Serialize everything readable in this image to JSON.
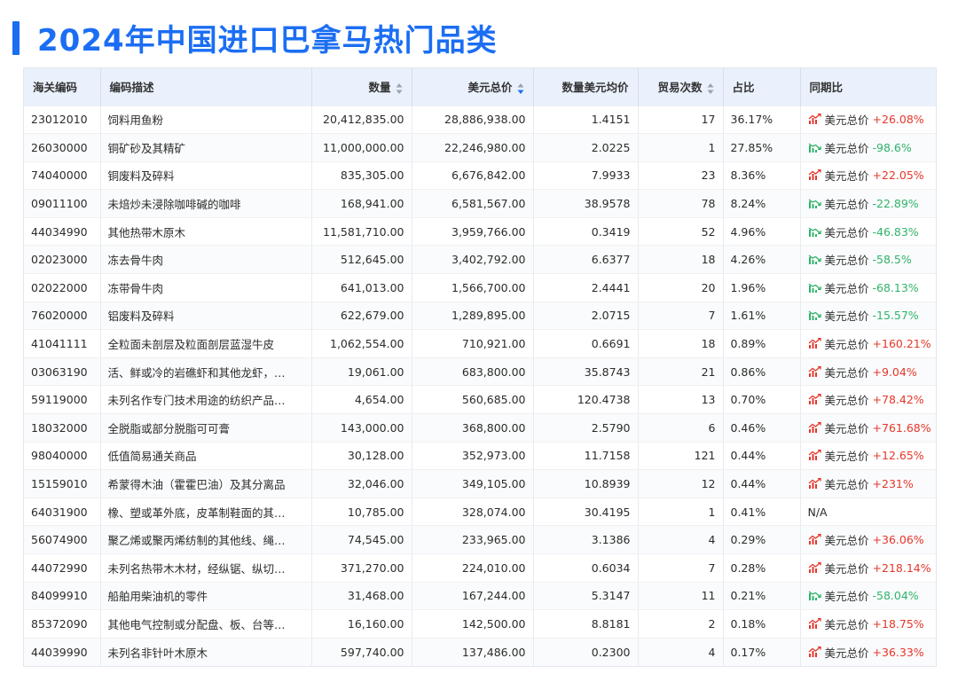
{
  "page_title": "2024年中国进口巴拿马热门品类",
  "colors": {
    "accent": "#1b6ef3",
    "positive": "#e5372b",
    "negative": "#2fb36b",
    "header_bg": "#eaf1fc"
  },
  "table": {
    "headers": {
      "code": "海关编码",
      "desc": "编码描述",
      "qty": "数量",
      "usd": "美元总价",
      "avg": "数量美元均价",
      "trades": "贸易次数",
      "share": "占比",
      "yoy": "同期比"
    },
    "rows": [
      {
        "code": "23012010",
        "desc": "饲料用鱼粉",
        "qty": "20,412,835.00",
        "usd": "28,886,938.00",
        "avg": "1.4151",
        "trades": "17",
        "share": "36.17%",
        "yoy_prefix": "美元总价",
        "yoy": "+26.08%",
        "dir": "up"
      },
      {
        "code": "26030000",
        "desc": "铜矿砂及其精矿",
        "qty": "11,000,000.00",
        "usd": "22,246,980.00",
        "avg": "2.0225",
        "trades": "1",
        "share": "27.85%",
        "yoy_prefix": "美元总价",
        "yoy": "-98.6%",
        "dir": "down"
      },
      {
        "code": "74040000",
        "desc": "铜废料及碎料",
        "qty": "835,305.00",
        "usd": "6,676,842.00",
        "avg": "7.9933",
        "trades": "23",
        "share": "8.36%",
        "yoy_prefix": "美元总价",
        "yoy": "+22.05%",
        "dir": "up"
      },
      {
        "code": "09011100",
        "desc": "未焙炒未浸除咖啡碱的咖啡",
        "qty": "168,941.00",
        "usd": "6,581,567.00",
        "avg": "38.9578",
        "trades": "78",
        "share": "8.24%",
        "yoy_prefix": "美元总价",
        "yoy": "-22.89%",
        "dir": "down"
      },
      {
        "code": "44034990",
        "desc": "其他热带木原木",
        "qty": "11,581,710.00",
        "usd": "3,959,766.00",
        "avg": "0.3419",
        "trades": "52",
        "share": "4.96%",
        "yoy_prefix": "美元总价",
        "yoy": "-46.83%",
        "dir": "down"
      },
      {
        "code": "02023000",
        "desc": "冻去骨牛肉",
        "qty": "512,645.00",
        "usd": "3,402,792.00",
        "avg": "6.6377",
        "trades": "18",
        "share": "4.26%",
        "yoy_prefix": "美元总价",
        "yoy": "-58.5%",
        "dir": "down"
      },
      {
        "code": "02022000",
        "desc": "冻带骨牛肉",
        "qty": "641,013.00",
        "usd": "1,566,700.00",
        "avg": "2.4441",
        "trades": "20",
        "share": "1.96%",
        "yoy_prefix": "美元总价",
        "yoy": "-68.13%",
        "dir": "down"
      },
      {
        "code": "76020000",
        "desc": "铝废料及碎料",
        "qty": "622,679.00",
        "usd": "1,289,895.00",
        "avg": "2.0715",
        "trades": "7",
        "share": "1.61%",
        "yoy_prefix": "美元总价",
        "yoy": "-15.57%",
        "dir": "down"
      },
      {
        "code": "41041111",
        "desc": "全粒面未剖层及粒面剖层蓝湿牛皮",
        "qty": "1,062,554.00",
        "usd": "710,921.00",
        "avg": "0.6691",
        "trades": "18",
        "share": "0.89%",
        "yoy_prefix": "美元总价",
        "yoy": "+160.21%",
        "dir": "up"
      },
      {
        "code": "03063190",
        "desc": "活、鲜或冷的岩礁虾和其他龙虾，…",
        "qty": "19,061.00",
        "usd": "683,800.00",
        "avg": "35.8743",
        "trades": "21",
        "share": "0.86%",
        "yoy_prefix": "美元总价",
        "yoy": "+9.04%",
        "dir": "up"
      },
      {
        "code": "59119000",
        "desc": "未列名作专门技术用途的纺织产品…",
        "qty": "4,654.00",
        "usd": "560,685.00",
        "avg": "120.4738",
        "trades": "13",
        "share": "0.70%",
        "yoy_prefix": "美元总价",
        "yoy": "+78.42%",
        "dir": "up"
      },
      {
        "code": "18032000",
        "desc": "全脱脂或部分脱脂可可膏",
        "qty": "143,000.00",
        "usd": "368,800.00",
        "avg": "2.5790",
        "trades": "6",
        "share": "0.46%",
        "yoy_prefix": "美元总价",
        "yoy": "+761.68%",
        "dir": "up"
      },
      {
        "code": "98040000",
        "desc": "低值简易通关商品",
        "qty": "30,128.00",
        "usd": "352,973.00",
        "avg": "11.7158",
        "trades": "121",
        "share": "0.44%",
        "yoy_prefix": "美元总价",
        "yoy": "+12.65%",
        "dir": "up"
      },
      {
        "code": "15159010",
        "desc": "希蒙得木油（霍霍巴油）及其分离品",
        "qty": "32,046.00",
        "usd": "349,105.00",
        "avg": "10.8939",
        "trades": "12",
        "share": "0.44%",
        "yoy_prefix": "美元总价",
        "yoy": "+231%",
        "dir": "up"
      },
      {
        "code": "64031900",
        "desc": "橡、塑或革外底，皮革制鞋面的其…",
        "qty": "10,785.00",
        "usd": "328,074.00",
        "avg": "30.4195",
        "trades": "1",
        "share": "0.41%",
        "yoy_prefix": "",
        "yoy": "N/A",
        "dir": "none"
      },
      {
        "code": "56074900",
        "desc": "聚乙烯或聚丙烯纺制的其他线、绳…",
        "qty": "74,545.00",
        "usd": "233,965.00",
        "avg": "3.1386",
        "trades": "4",
        "share": "0.29%",
        "yoy_prefix": "美元总价",
        "yoy": "+36.06%",
        "dir": "up"
      },
      {
        "code": "44072990",
        "desc": "未列名热带木木材，经纵锯、纵切…",
        "qty": "371,270.00",
        "usd": "224,010.00",
        "avg": "0.6034",
        "trades": "7",
        "share": "0.28%",
        "yoy_prefix": "美元总价",
        "yoy": "+218.14%",
        "dir": "up"
      },
      {
        "code": "84099910",
        "desc": "船舶用柴油机的零件",
        "qty": "31,468.00",
        "usd": "167,244.00",
        "avg": "5.3147",
        "trades": "11",
        "share": "0.21%",
        "yoy_prefix": "美元总价",
        "yoy": "-58.04%",
        "dir": "down"
      },
      {
        "code": "85372090",
        "desc": "其他电气控制或分配盘、板、台等…",
        "qty": "16,160.00",
        "usd": "142,500.00",
        "avg": "8.8181",
        "trades": "2",
        "share": "0.18%",
        "yoy_prefix": "美元总价",
        "yoy": "+18.75%",
        "dir": "up"
      },
      {
        "code": "44039990",
        "desc": "未列名非针叶木原木",
        "qty": "597,740.00",
        "usd": "137,486.00",
        "avg": "0.2300",
        "trades": "4",
        "share": "0.17%",
        "yoy_prefix": "美元总价",
        "yoy": "+36.33%",
        "dir": "up"
      }
    ]
  }
}
